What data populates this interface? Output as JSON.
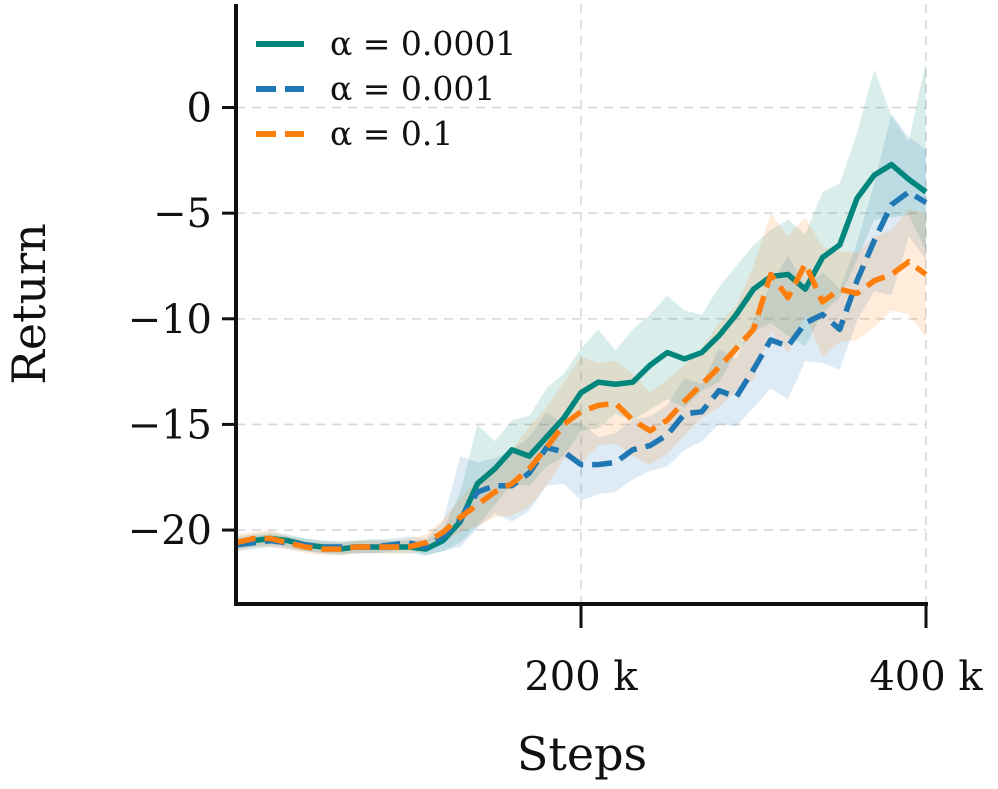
{
  "chart_data": {
    "type": "line",
    "title": "",
    "xlabel": "Steps",
    "ylabel": "Return",
    "xlim": [
      0,
      400000
    ],
    "ylim": [
      -23.5,
      4.9
    ],
    "grid": true,
    "legend_position": "top-left",
    "x_ticks": [
      {
        "value": 200000,
        "label": "200 k"
      },
      {
        "value": 400000,
        "label": "400 k"
      }
    ],
    "y_ticks": [
      {
        "value": 0,
        "label": "0"
      },
      {
        "value": -5,
        "label": "−5"
      },
      {
        "value": -10,
        "label": "−10"
      },
      {
        "value": -15,
        "label": "−15"
      },
      {
        "value": -20,
        "label": "−20"
      }
    ],
    "x": [
      0,
      10000,
      20000,
      30000,
      40000,
      50000,
      60000,
      70000,
      80000,
      90000,
      100000,
      110000,
      120000,
      130000,
      140000,
      150000,
      160000,
      170000,
      180000,
      190000,
      200000,
      210000,
      220000,
      230000,
      240000,
      250000,
      260000,
      270000,
      280000,
      290000,
      300000,
      310000,
      320000,
      330000,
      340000,
      350000,
      360000,
      370000,
      380000,
      390000,
      400000
    ],
    "series": [
      {
        "name": "α = 0.0001",
        "legend_label": "α = 0.0001",
        "color": "#00867c",
        "dash": "solid",
        "values": [
          -20.6,
          -20.5,
          -20.4,
          -20.5,
          -20.7,
          -20.8,
          -20.9,
          -20.8,
          -20.8,
          -20.8,
          -20.8,
          -20.9,
          -20.5,
          -19.6,
          -17.8,
          -17.1,
          -16.2,
          -16.5,
          -15.6,
          -14.7,
          -13.5,
          -13.0,
          -13.1,
          -13.0,
          -12.2,
          -11.6,
          -11.9,
          -11.6,
          -10.8,
          -9.8,
          -8.6,
          -8.0,
          -7.9,
          -8.6,
          -7.1,
          -6.5,
          -4.3,
          -3.2,
          -2.7,
          -3.4,
          -4.0
        ],
        "band_upper": [
          -20.3,
          -20.2,
          -20.1,
          -20.2,
          -20.4,
          -20.5,
          -20.6,
          -20.5,
          -20.4,
          -20.5,
          -20.5,
          -20.5,
          -20.0,
          -18.2,
          -15.0,
          -15.8,
          -14.8,
          -14.6,
          -13.3,
          -12.6,
          -11.4,
          -10.5,
          -11.5,
          -10.5,
          -9.8,
          -8.9,
          -9.6,
          -9.8,
          -8.5,
          -7.5,
          -6.5,
          -5.8,
          -5.3,
          -6.0,
          -4.0,
          -3.6,
          -1.2,
          1.8,
          -0.4,
          -1.6,
          2.2
        ],
        "band_lower": [
          -20.9,
          -20.8,
          -20.7,
          -20.8,
          -21.0,
          -21.1,
          -21.2,
          -21.1,
          -21.1,
          -21.1,
          -21.1,
          -21.2,
          -21.0,
          -20.6,
          -19.8,
          -18.8,
          -17.8,
          -17.9,
          -17.0,
          -16.5,
          -15.3,
          -15.2,
          -14.5,
          -14.8,
          -14.3,
          -13.8,
          -14.2,
          -13.4,
          -13.0,
          -11.6,
          -10.6,
          -10.2,
          -10.8,
          -11.3,
          -9.7,
          -9.0,
          -7.2,
          -5.3,
          -5.2,
          -5.1,
          -6.8
        ]
      },
      {
        "name": "α = 0.001",
        "legend_label": "α = 0.001",
        "color": "#1f77b4",
        "dash": "dashed",
        "values": [
          -20.7,
          -20.6,
          -20.5,
          -20.6,
          -20.7,
          -20.8,
          -20.8,
          -20.8,
          -20.8,
          -20.7,
          -20.6,
          -20.8,
          -20.3,
          -19.5,
          -18.2,
          -17.9,
          -17.9,
          -17.3,
          -16.1,
          -16.3,
          -16.9,
          -16.9,
          -16.8,
          -16.2,
          -16.0,
          -15.5,
          -14.5,
          -14.4,
          -13.4,
          -13.7,
          -12.4,
          -11.0,
          -11.3,
          -10.2,
          -9.8,
          -10.5,
          -8.2,
          -6.3,
          -4.6,
          -4.0,
          -4.5
        ],
        "band_upper": [
          -20.4,
          -20.3,
          -20.2,
          -20.3,
          -20.4,
          -20.5,
          -20.5,
          -20.5,
          -20.5,
          -20.4,
          -20.3,
          -20.4,
          -19.6,
          -16.5,
          -16.8,
          -16.6,
          -16.2,
          -15.6,
          -14.4,
          -15.0,
          -14.9,
          -15.6,
          -15.4,
          -14.8,
          -14.6,
          -14.1,
          -12.8,
          -13.1,
          -11.4,
          -11.9,
          -10.0,
          -8.4,
          -7.0,
          -8.5,
          -7.8,
          -8.6,
          -6.4,
          -3.6,
          -0.3,
          -1.4,
          -2.0
        ],
        "band_lower": [
          -21.0,
          -20.9,
          -20.8,
          -20.9,
          -21.0,
          -21.1,
          -21.1,
          -21.1,
          -21.1,
          -21.0,
          -20.9,
          -21.2,
          -21.0,
          -20.8,
          -19.9,
          -19.2,
          -19.6,
          -19.1,
          -17.9,
          -17.8,
          -18.6,
          -18.3,
          -18.2,
          -17.6,
          -17.2,
          -17.0,
          -16.2,
          -15.8,
          -15.0,
          -15.1,
          -14.2,
          -13.3,
          -13.8,
          -12.0,
          -12.1,
          -12.4,
          -10.1,
          -8.7,
          -8.9,
          -6.1,
          -7.2
        ]
      },
      {
        "name": "α = 0.1",
        "legend_label": "α = 0.1",
        "color": "#ff7f0e",
        "dash": "dashed",
        "values": [
          -20.6,
          -20.4,
          -20.4,
          -20.6,
          -20.8,
          -20.9,
          -20.9,
          -20.8,
          -20.8,
          -20.8,
          -20.8,
          -20.6,
          -20.1,
          -19.4,
          -18.8,
          -18.2,
          -17.8,
          -17.1,
          -16.1,
          -15.0,
          -14.4,
          -14.1,
          -14.0,
          -14.8,
          -15.3,
          -14.8,
          -13.9,
          -13.1,
          -12.3,
          -11.4,
          -10.5,
          -7.9,
          -9.0,
          -7.4,
          -9.2,
          -8.6,
          -8.8,
          -8.2,
          -7.9,
          -7.3,
          -7.9
        ],
        "band_upper": [
          -20.2,
          -20.1,
          -20.0,
          -20.3,
          -20.5,
          -20.6,
          -20.6,
          -20.5,
          -20.5,
          -20.5,
          -20.4,
          -20.2,
          -19.5,
          -18.5,
          -17.6,
          -16.9,
          -16.2,
          -15.1,
          -14.2,
          -13.0,
          -11.8,
          -12.1,
          -12.0,
          -12.6,
          -13.5,
          -12.9,
          -12.2,
          -11.4,
          -10.2,
          -9.4,
          -7.5,
          -5.0,
          -6.1,
          -5.2,
          -6.6,
          -6.8,
          -6.9,
          -6.1,
          -5.8,
          -4.8,
          -5.0
        ],
        "band_lower": [
          -21.0,
          -20.8,
          -20.8,
          -20.9,
          -21.1,
          -21.2,
          -21.2,
          -21.1,
          -21.1,
          -21.1,
          -21.1,
          -21.0,
          -20.6,
          -20.1,
          -19.8,
          -19.4,
          -19.3,
          -18.9,
          -17.9,
          -16.6,
          -16.8,
          -16.0,
          -15.9,
          -16.5,
          -16.9,
          -16.4,
          -15.5,
          -14.7,
          -14.2,
          -13.4,
          -12.9,
          -10.6,
          -11.6,
          -9.8,
          -11.8,
          -11.1,
          -11.0,
          -10.4,
          -9.6,
          -9.8,
          -10.9
        ]
      }
    ]
  }
}
